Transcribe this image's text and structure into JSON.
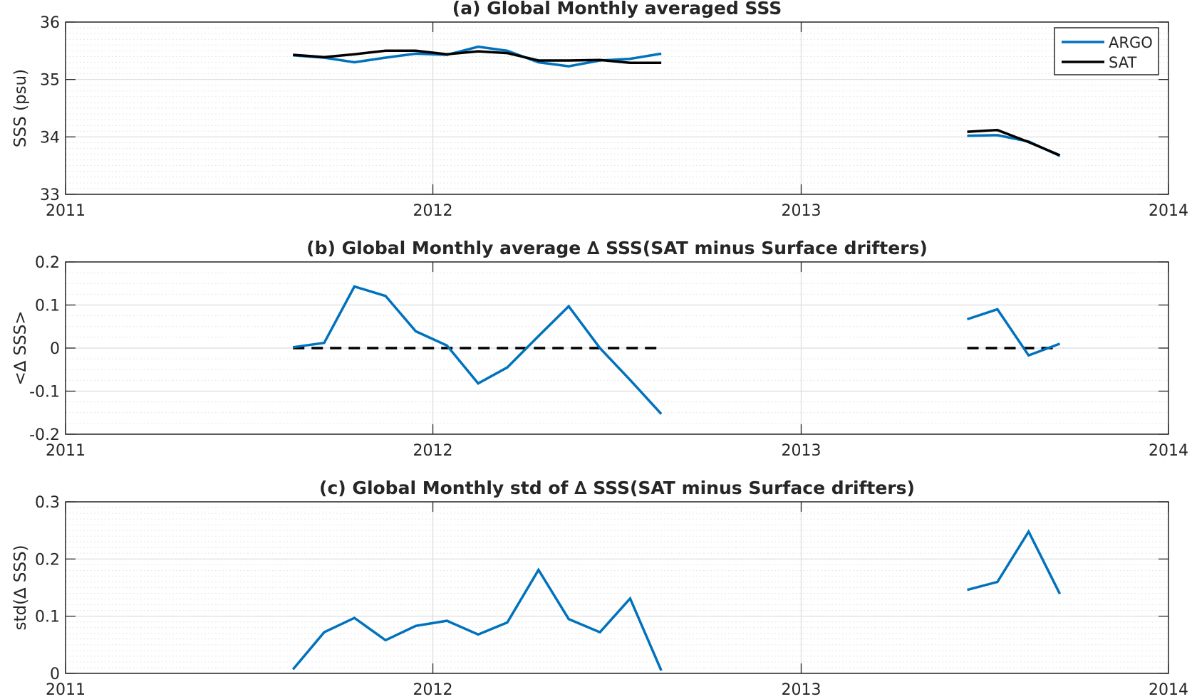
{
  "colors": {
    "argo": "#0072bd",
    "sat": "#000000",
    "axis": "#262626",
    "grid_major": "#dcdcdc",
    "grid_minor": "#e6e6e6",
    "zero_line": "#000000"
  },
  "chart_data": [
    {
      "type": "line",
      "title": "(a) Global Monthly averaged SSS",
      "xlabel": "",
      "ylabel": "SSS (psu)",
      "xlim": [
        "2011-01-01",
        "2014-01-01"
      ],
      "xticks": [
        "2011",
        "2012",
        "2013",
        "2014"
      ],
      "ylim": [
        33,
        36
      ],
      "yticks": [
        "33",
        "34",
        "35",
        "36"
      ],
      "grid": true,
      "minor_grid": true,
      "legend": "top-right",
      "series": [
        {
          "name": "ARGO",
          "color": "argo",
          "segments": [
            {
              "x": [
                "2011-08-15",
                "2011-09-15",
                "2011-10-15",
                "2011-11-15",
                "2011-12-15",
                "2012-01-15",
                "2012-02-15",
                "2012-03-15",
                "2012-04-15",
                "2012-05-15",
                "2012-06-15",
                "2012-07-15",
                "2012-08-15"
              ],
              "y": [
                35.42,
                35.38,
                35.3,
                35.38,
                35.45,
                35.43,
                35.57,
                35.5,
                35.3,
                35.23,
                35.33,
                35.36,
                35.45
              ]
            },
            {
              "x": [
                "2013-06-15",
                "2013-07-15",
                "2013-08-15",
                "2013-09-15"
              ],
              "y": [
                34.02,
                34.03,
                33.92,
                33.67
              ]
            }
          ]
        },
        {
          "name": "SAT",
          "color": "sat",
          "segments": [
            {
              "x": [
                "2011-08-15",
                "2011-09-15",
                "2011-10-15",
                "2011-11-15",
                "2011-12-15",
                "2012-01-15",
                "2012-02-15",
                "2012-03-15",
                "2012-04-15",
                "2012-05-15",
                "2012-06-15",
                "2012-07-15",
                "2012-08-15"
              ],
              "y": [
                35.43,
                35.39,
                35.44,
                35.5,
                35.5,
                35.44,
                35.49,
                35.46,
                35.33,
                35.33,
                35.34,
                35.29,
                35.29
              ]
            },
            {
              "x": [
                "2013-06-15",
                "2013-07-15",
                "2013-08-15",
                "2013-09-15"
              ],
              "y": [
                34.09,
                34.12,
                33.91,
                33.68
              ]
            }
          ]
        }
      ]
    },
    {
      "type": "line",
      "title": "(b) Global Monthly average ∆ SSS(SAT minus Surface drifters)",
      "xlabel": "",
      "ylabel": "<∆ SSS>",
      "xlim": [
        "2011-01-01",
        "2014-01-01"
      ],
      "xticks": [
        "2011",
        "2012",
        "2013",
        "2014"
      ],
      "ylim": [
        -0.2,
        0.2
      ],
      "yticks": [
        "-0.2",
        "-0.1",
        "0",
        "0.1",
        "0.2"
      ],
      "grid": true,
      "minor_grid": true,
      "series": [
        {
          "color": "argo",
          "segments": [
            {
              "x": [
                "2011-08-15",
                "2011-09-15",
                "2011-10-15",
                "2011-11-15",
                "2011-12-15",
                "2012-01-15",
                "2012-02-15",
                "2012-03-15",
                "2012-04-15",
                "2012-05-15",
                "2012-06-15",
                "2012-07-15",
                "2012-08-15"
              ],
              "y": [
                0.002,
                0.012,
                0.143,
                0.121,
                0.039,
                0.006,
                -0.082,
                -0.045,
                0.028,
                0.097,
                0.0,
                -0.074,
                -0.153
              ]
            },
            {
              "x": [
                "2013-06-15",
                "2013-07-15",
                "2013-08-15",
                "2013-09-15"
              ],
              "y": [
                0.067,
                0.09,
                -0.017,
                0.01
              ]
            }
          ]
        }
      ],
      "reference_lines": [
        {
          "style": "dashed",
          "y": 0,
          "x_range": [
            "2011-08-15",
            "2012-08-15"
          ]
        },
        {
          "style": "dashed",
          "y": 0,
          "x_range": [
            "2013-06-15",
            "2013-09-15"
          ]
        }
      ]
    },
    {
      "type": "line",
      "title": "(c) Global Monthly std of ∆ SSS(SAT minus Surface drifters)",
      "xlabel": "",
      "ylabel": "std(∆ SSS)",
      "xlim": [
        "2011-01-01",
        "2014-01-01"
      ],
      "xticks": [
        "2011",
        "2012",
        "2013",
        "2014"
      ],
      "ylim": [
        0,
        0.3
      ],
      "yticks": [
        "0",
        "0.1",
        "0.2",
        "0.3"
      ],
      "grid": true,
      "minor_grid": true,
      "series": [
        {
          "color": "argo",
          "segments": [
            {
              "x": [
                "2011-08-15",
                "2011-09-15",
                "2011-10-15",
                "2011-11-15",
                "2011-12-15",
                "2012-01-15",
                "2012-02-15",
                "2012-03-15",
                "2012-04-15",
                "2012-05-15",
                "2012-06-15",
                "2012-07-15",
                "2012-08-15"
              ],
              "y": [
                0.007,
                0.072,
                0.097,
                0.058,
                0.083,
                0.092,
                0.068,
                0.089,
                0.181,
                0.095,
                0.072,
                0.131,
                0.005
              ]
            },
            {
              "x": [
                "2013-06-15",
                "2013-07-15",
                "2013-08-15",
                "2013-09-15"
              ],
              "y": [
                0.146,
                0.16,
                0.248,
                0.139
              ]
            }
          ]
        }
      ]
    }
  ]
}
